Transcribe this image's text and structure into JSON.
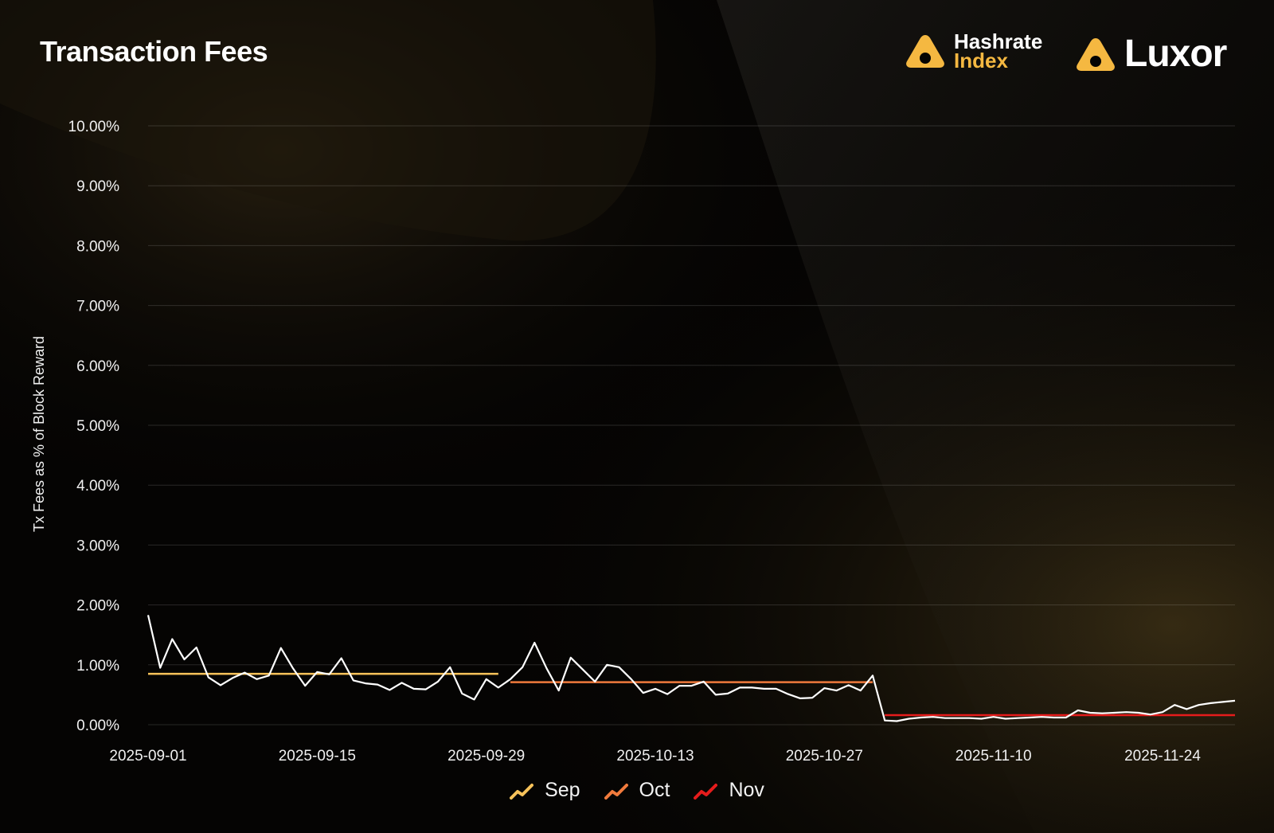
{
  "header": {
    "title": "Transaction Fees"
  },
  "brands": {
    "hashrate_line1": "Hashrate",
    "hashrate_line2": "Index",
    "luxor": "Luxor",
    "logo_icon": "triangle-logo-icon"
  },
  "colors": {
    "accent": "#f5b841",
    "sep": "#f7c25a",
    "oct": "#f07a3c",
    "nov": "#e51c1c",
    "series": "#ffffff"
  },
  "chart_data": {
    "type": "line",
    "title": "Transaction Fees",
    "xlabel": "",
    "ylabel": "Tx Fees as % of Block Reward",
    "y_ticks": [
      "10.00%",
      "9.00%",
      "8.00%",
      "7.00%",
      "6.00%",
      "5.00%",
      "4.00%",
      "3.00%",
      "2.00%",
      "1.00%",
      "0.00%"
    ],
    "x_ticks": [
      "2025-09-01",
      "2025-09-15",
      "2025-09-29",
      "2025-10-13",
      "2025-10-27",
      "2025-11-10",
      "2025-11-24"
    ],
    "ylim": [
      0,
      10
    ],
    "xlim": [
      "2025-09-01",
      "2025-11-30"
    ],
    "grid": true,
    "legend_position": "bottom-center",
    "legend": [
      "Sep",
      "Oct",
      "Nov"
    ],
    "series": [
      {
        "name": "",
        "color": "#ffffff",
        "x": [
          "2025-09-01",
          "2025-09-02",
          "2025-09-03",
          "2025-09-04",
          "2025-09-05",
          "2025-09-06",
          "2025-09-07",
          "2025-09-08",
          "2025-09-09",
          "2025-09-10",
          "2025-09-11",
          "2025-09-12",
          "2025-09-13",
          "2025-09-14",
          "2025-09-15",
          "2025-09-16",
          "2025-09-17",
          "2025-09-18",
          "2025-09-19",
          "2025-09-20",
          "2025-09-21",
          "2025-09-22",
          "2025-09-23",
          "2025-09-24",
          "2025-09-25",
          "2025-09-26",
          "2025-09-27",
          "2025-09-28",
          "2025-09-29",
          "2025-09-30",
          "2025-10-01",
          "2025-10-02",
          "2025-10-03",
          "2025-10-04",
          "2025-10-05",
          "2025-10-06",
          "2025-10-07",
          "2025-10-08",
          "2025-10-09",
          "2025-10-10",
          "2025-10-11",
          "2025-10-12",
          "2025-10-13",
          "2025-10-14",
          "2025-10-15",
          "2025-10-16",
          "2025-10-17",
          "2025-10-18",
          "2025-10-19",
          "2025-10-20",
          "2025-10-21",
          "2025-10-22",
          "2025-10-23",
          "2025-10-24",
          "2025-10-25",
          "2025-10-26",
          "2025-10-27",
          "2025-10-28",
          "2025-10-29",
          "2025-10-30",
          "2025-10-31",
          "2025-11-01",
          "2025-11-02",
          "2025-11-03",
          "2025-11-04",
          "2025-11-05",
          "2025-11-06",
          "2025-11-07",
          "2025-11-08",
          "2025-11-09",
          "2025-11-10",
          "2025-11-11",
          "2025-11-12",
          "2025-11-13",
          "2025-11-14",
          "2025-11-15",
          "2025-11-16",
          "2025-11-17",
          "2025-11-18",
          "2025-11-19",
          "2025-11-20",
          "2025-11-21",
          "2025-11-22",
          "2025-11-23",
          "2025-11-24",
          "2025-11-25",
          "2025-11-26",
          "2025-11-27",
          "2025-11-28",
          "2025-11-29",
          "2025-11-30"
        ],
        "values": [
          1.83,
          0.95,
          1.43,
          1.09,
          1.29,
          0.79,
          0.66,
          0.78,
          0.87,
          0.76,
          0.82,
          1.28,
          0.94,
          0.65,
          0.88,
          0.84,
          1.11,
          0.74,
          0.69,
          0.67,
          0.58,
          0.7,
          0.6,
          0.59,
          0.72,
          0.96,
          0.52,
          0.42,
          0.76,
          0.62,
          0.76,
          0.96,
          1.37,
          0.94,
          0.57,
          1.12,
          0.92,
          0.72,
          1.0,
          0.96,
          0.76,
          0.53,
          0.6,
          0.51,
          0.65,
          0.65,
          0.72,
          0.5,
          0.52,
          0.62,
          0.62,
          0.6,
          0.6,
          0.51,
          0.44,
          0.45,
          0.61,
          0.57,
          0.66,
          0.57,
          0.82,
          0.07,
          0.06,
          0.1,
          0.12,
          0.13,
          0.11,
          0.11,
          0.11,
          0.1,
          0.13,
          0.1,
          0.11,
          0.12,
          0.13,
          0.12,
          0.12,
          0.24,
          0.2,
          0.19,
          0.2,
          0.21,
          0.2,
          0.17,
          0.21,
          0.33,
          0.26,
          0.33,
          0.36,
          0.38,
          0.4
        ]
      },
      {
        "name": "Sep",
        "color": "#f7c25a",
        "x": [
          "2025-09-01",
          "2025-09-30"
        ],
        "values": [
          0.85,
          0.85
        ]
      },
      {
        "name": "Oct",
        "color": "#f07a3c",
        "x": [
          "2025-10-01",
          "2025-10-31"
        ],
        "values": [
          0.71,
          0.71
        ]
      },
      {
        "name": "Nov",
        "color": "#e51c1c",
        "x": [
          "2025-11-01",
          "2025-11-30"
        ],
        "values": [
          0.16,
          0.16
        ]
      }
    ]
  }
}
